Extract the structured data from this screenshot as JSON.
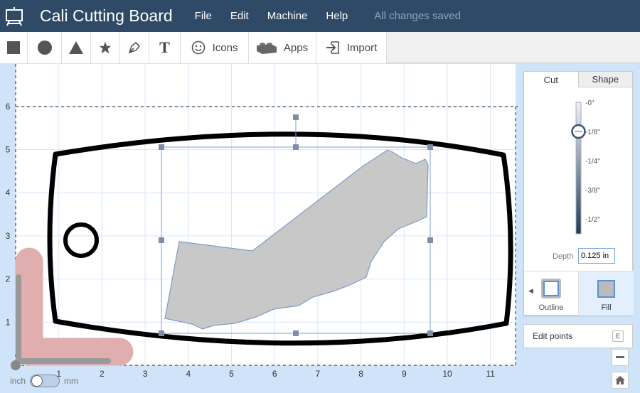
{
  "app": {
    "title": "Cali Cutting Board",
    "status": "All changes saved",
    "menu": [
      "File",
      "Edit",
      "Machine",
      "Help"
    ]
  },
  "toolbar": {
    "icons_label": "Icons",
    "apps_label": "Apps",
    "import_label": "Import"
  },
  "ruler": {
    "x_ticks": [
      "1",
      "2",
      "3",
      "4",
      "5",
      "6",
      "7",
      "8",
      "9",
      "10",
      "11"
    ],
    "y_ticks": [
      "1",
      "2",
      "3",
      "4",
      "5",
      "6"
    ]
  },
  "panel": {
    "tabs": [
      "Cut",
      "Shape"
    ],
    "active_tab": "Cut",
    "depth_marks": [
      "-0\"",
      "-1/8\"",
      "-1/4\"",
      "-3/8\"",
      "-1/2\""
    ],
    "depth_label": "Depth",
    "depth_value": "0.125 in",
    "depth_fraction": 0.25,
    "modes": [
      "Outline",
      "Fill"
    ],
    "selected_mode": "Fill"
  },
  "edit_points": {
    "label": "Edit points",
    "shortcut": "E"
  },
  "units": {
    "left": "inch",
    "right": "mm",
    "selected": "inch"
  },
  "colors": {
    "topbar": "#2f4a66",
    "selection": "#7d9cc9",
    "fill": "#c8c8c8",
    "safe_area": "#e0aeae"
  }
}
